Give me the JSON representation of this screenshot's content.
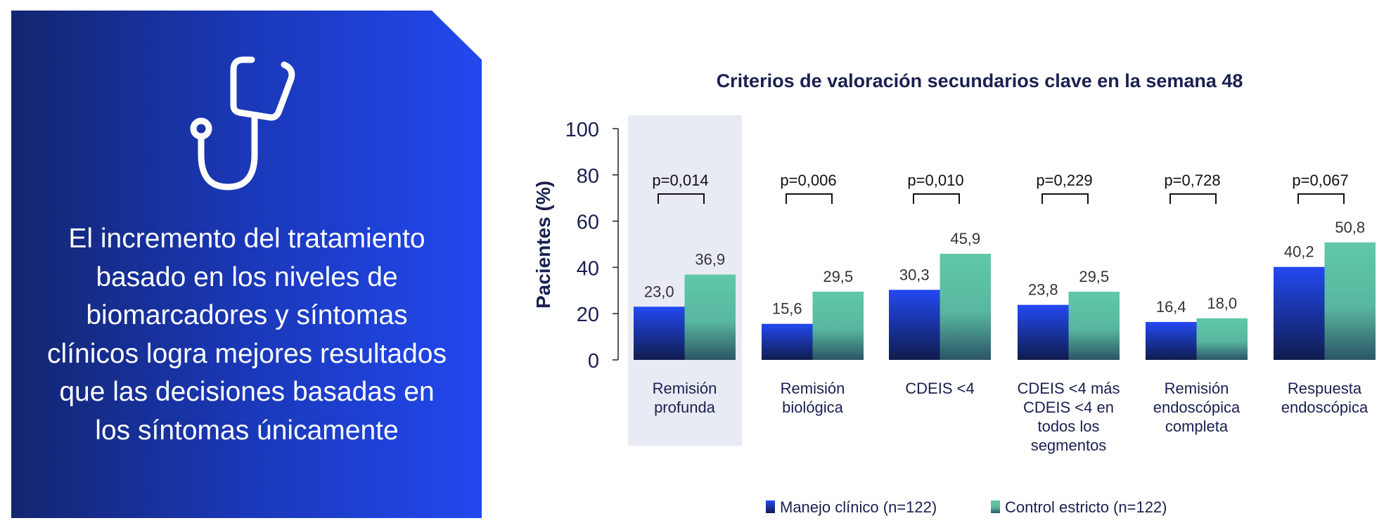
{
  "panel": {
    "icon": "stethoscope-icon",
    "message": "El incremento del tratamiento basado en los niveles de biomarcadores y síntomas clínicos logra mejores resultados que las decisiones basadas en los síntomas únicamente"
  },
  "chart_data": {
    "type": "bar",
    "title": "Criterios de valoración secundarios clave en la semana 48",
    "ylabel": "Pacientes (%)",
    "xlabel": "",
    "ylim": [
      0,
      100
    ],
    "yticks": [
      0,
      20,
      40,
      60,
      80,
      100
    ],
    "grid": false,
    "legend_position": "bottom",
    "categories": [
      [
        "Remisión",
        "profunda"
      ],
      [
        "Remisión",
        "biológica"
      ],
      [
        "CDEIS <4"
      ],
      [
        "CDEIS <4 más",
        "CDEIS <4 en",
        "todos los",
        "segmentos"
      ],
      [
        "Remisión",
        "endoscópica",
        "completa"
      ],
      [
        "Respuesta",
        "endoscópica"
      ]
    ],
    "highlighted_category": 0,
    "series": [
      {
        "name": "Manejo clínico (n=122)",
        "color": "#2247f0",
        "values": [
          23.0,
          15.6,
          30.3,
          23.8,
          16.4,
          40.2
        ],
        "labels": [
          "23,0",
          "15,6",
          "30,3",
          "23,8",
          "16,4",
          "40,2"
        ]
      },
      {
        "name": "Control estricto (n=122)",
        "color": "#5fc7a8",
        "values": [
          36.9,
          29.5,
          45.9,
          29.5,
          18.0,
          50.8
        ],
        "labels": [
          "36,9",
          "29,5",
          "45,9",
          "29,5",
          "18,0",
          "50,8"
        ]
      }
    ],
    "p_values": [
      "p=0,014",
      "p=0,006",
      "p=0,010",
      "p=0,229",
      "p=0,728",
      "p=0,067"
    ]
  }
}
